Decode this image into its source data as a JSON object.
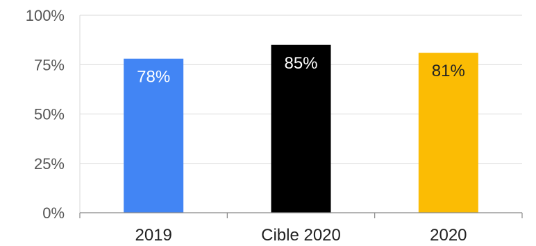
{
  "chart_data": {
    "type": "bar",
    "title": "",
    "xlabel": "",
    "ylabel": "",
    "categories": [
      "2019",
      "Cible 2020",
      "2020"
    ],
    "values": [
      78,
      85,
      81
    ],
    "data_labels": [
      "78%",
      "85%",
      "81%"
    ],
    "colors": [
      "#4285f4",
      "#000000",
      "#fbbc04"
    ],
    "label_colors": [
      "#ffffff",
      "#ffffff",
      "#222222"
    ],
    "ylim": [
      0,
      100
    ],
    "y_ticks": [
      0,
      25,
      50,
      75,
      100
    ],
    "y_tick_labels": [
      "0%",
      "25%",
      "50%",
      "75%",
      "100%"
    ],
    "grid": true,
    "legend": "none"
  }
}
